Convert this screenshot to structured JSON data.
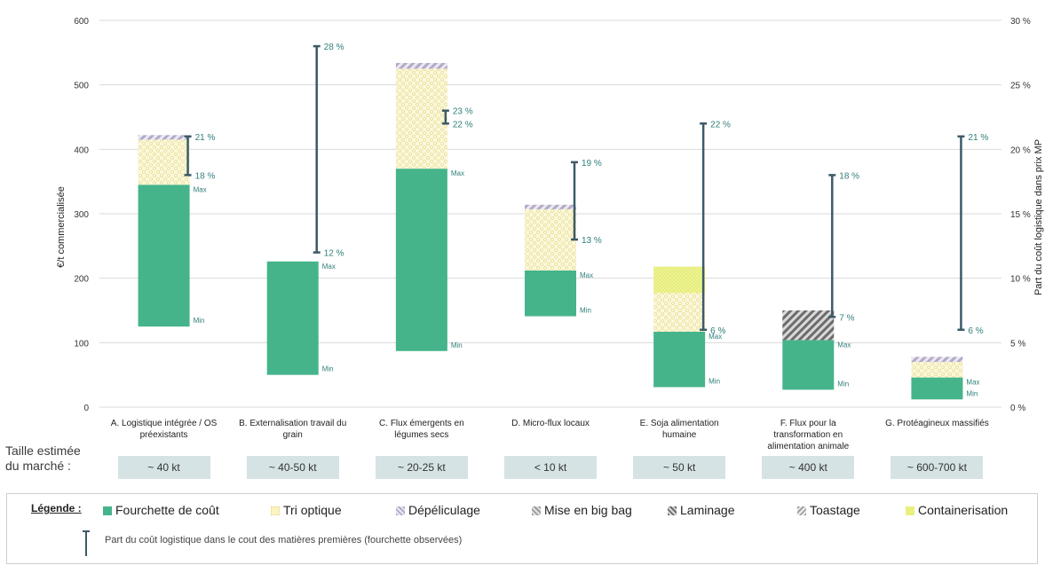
{
  "chart_data": {
    "type": "bar",
    "stacked": true,
    "floating": true,
    "ylabel": "€/t commercialisée",
    "y2label": "Part du coût logistique dans prix MP",
    "ylim": [
      0,
      600
    ],
    "yticks": [
      0,
      100,
      200,
      300,
      400,
      500,
      600
    ],
    "y2lim": [
      0,
      30
    ],
    "y2ticks": [
      "0 %",
      "5 %",
      "10 %",
      "15 %",
      "20 %",
      "25 %",
      "30 %"
    ],
    "grid": true,
    "categories": [
      [
        "A. Logistique intégrée / OS",
        "préexistants"
      ],
      [
        "B. Externalisation travail du",
        "grain"
      ],
      [
        "C. Flux émergents en",
        "légumes secs"
      ],
      [
        "D. Micro-flux locaux"
      ],
      [
        "E. Soja alimentation",
        "humaine"
      ],
      [
        "F. Flux pour la",
        "transformation en",
        "alimentation animale"
      ],
      [
        "G. Protéagineux massifiés"
      ]
    ],
    "cost_range": {
      "name": "Fourchette de coût",
      "min": [
        125,
        50,
        87,
        141,
        31,
        27,
        12
      ],
      "max": [
        345,
        226,
        370,
        212,
        117,
        104,
        46
      ]
    },
    "components": [
      {
        "name": "Tri optique",
        "color": "#f5efb9",
        "values": [
          70,
          0,
          155,
          95,
          60,
          0,
          24
        ]
      },
      {
        "name": "Dépéliculage",
        "color": "#c8c1d8",
        "values": [
          7,
          0,
          9,
          7,
          0,
          0,
          8
        ]
      },
      {
        "name": "Mise en big bag",
        "color": "#a8a8a8",
        "values": [
          0,
          0,
          0,
          0,
          0,
          0,
          0
        ]
      },
      {
        "name": "Laminage",
        "color": "#7e7e7e",
        "values": [
          0,
          0,
          0,
          0,
          0,
          46,
          0
        ]
      },
      {
        "name": "Toastage",
        "color": "#bdbdbd",
        "values": [
          0,
          0,
          0,
          0,
          0,
          0,
          0
        ]
      },
      {
        "name": "Containerisation",
        "color": "#e6ef86",
        "values": [
          0,
          0,
          0,
          0,
          41,
          0,
          0
        ]
      }
    ],
    "share_range": {
      "name": "Part du coût logistique dans le cout des matières premières (fourchette observées)",
      "low": [
        18,
        12,
        22,
        13,
        6,
        7,
        6
      ],
      "high": [
        21,
        28,
        23,
        19,
        22,
        18,
        21
      ],
      "low_labels": [
        "18 %",
        "12 %",
        "22 %",
        "13 %",
        "6 %",
        "7 %",
        "6 %"
      ],
      "high_labels": [
        "21 %",
        "28 %",
        "23 %",
        "19 %",
        "22 %",
        "18 %",
        "21 %"
      ]
    },
    "max_label": "Max",
    "min_label": "Min",
    "colors": {
      "cost": "#45b48b",
      "range": "#3d5a68",
      "label": "#2f7f7a"
    }
  },
  "market": {
    "label_line1": "Taille estimée",
    "label_line2": "du marché :",
    "sizes": [
      "~ 40 kt",
      "~ 40-50 kt",
      "~ 20-25 kt",
      "< 10 kt",
      "~ 50 kt",
      "~ 400 kt",
      "~ 600-700 kt"
    ]
  },
  "legend": {
    "title": "Légende :",
    "items": [
      "Fourchette de coût",
      "Tri optique",
      "Dépéliculage",
      "Mise en big bag",
      "Laminage",
      "Toastage",
      "Containerisation"
    ],
    "range_text": "Part du coût logistique dans le cout des matières premières (fourchette observées)"
  }
}
